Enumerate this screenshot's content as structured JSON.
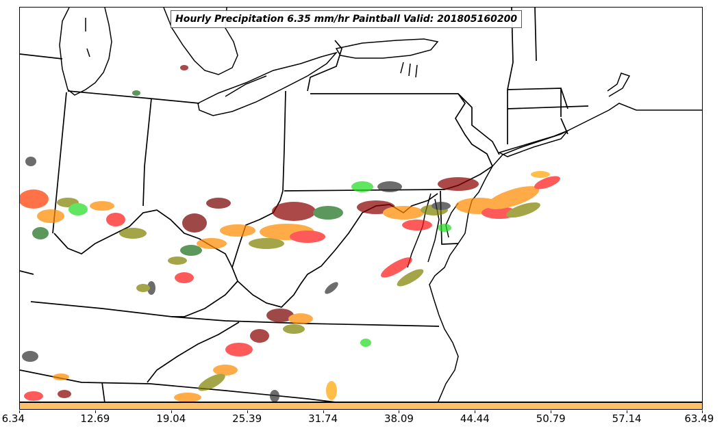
{
  "title": "Hourly Precipitation 6.35 mm/hr Paintball Valid: 201805160200",
  "colorbar": {
    "color": "#fec06a",
    "ticks": [
      "6.34",
      "12.69",
      "19.04",
      "25.39",
      "31.74",
      "38.09",
      "44.44",
      "50.79",
      "57.14",
      "63.49"
    ]
  },
  "map": {
    "region": "Eastern United States",
    "boundaries": [
      "state",
      "great-lakes-coastline",
      "atlantic-coastline"
    ],
    "paintball_colors": [
      "#ff0000",
      "#ff8c00",
      "#006400",
      "#00dd00",
      "#8b0000",
      "#808000",
      "#333333",
      "#ffa500"
    ]
  }
}
